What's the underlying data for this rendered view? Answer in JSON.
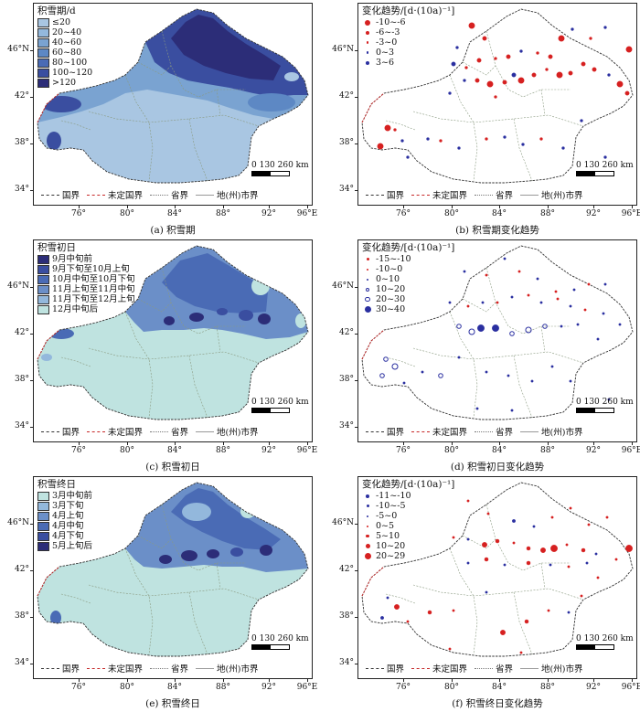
{
  "panels": [
    {
      "id": "a",
      "legend_title": "积雪期/d",
      "legend_type": "fill",
      "legend": [
        {
          "label": "≤20",
          "color": "#a9c6e2"
        },
        {
          "label": "20~40",
          "color": "#93b8dc"
        },
        {
          "label": "40~60",
          "color": "#7aa3d1"
        },
        {
          "label": "60~80",
          "color": "#5d88c4"
        },
        {
          "label": "80~100",
          "color": "#4a6bb5"
        },
        {
          "label": "100~120",
          "color": "#3a4ea0"
        },
        {
          "label": ">120",
          "color": "#2c2d78"
        }
      ],
      "caption": "(a) 积雪期"
    },
    {
      "id": "b",
      "legend_title": "变化趋势/[d·(10a)⁻¹]",
      "legend_type": "dot",
      "legend": [
        {
          "label": "-10~-6",
          "color": "#d62020",
          "size": 6,
          "hollow": false
        },
        {
          "label": "-6~-3",
          "color": "#d62020",
          "size": 4,
          "hollow": false
        },
        {
          "label": "-3~0",
          "color": "#d62020",
          "size": 2.5,
          "hollow": false
        },
        {
          "label": "0~3",
          "color": "#2a2fa0",
          "size": 2.5,
          "hollow": false
        },
        {
          "label": "3~6",
          "color": "#2a2fa0",
          "size": 4,
          "hollow": false
        }
      ],
      "caption": "(b) 积雪期变化趋势"
    },
    {
      "id": "c",
      "legend_title": "积雪初日",
      "legend_type": "fill",
      "legend": [
        {
          "label": "9月中旬前",
          "color": "#2c2d78"
        },
        {
          "label": "9月下旬至10月上旬",
          "color": "#3a4ea0"
        },
        {
          "label": "10月中旬至10月下旬",
          "color": "#4a6bb5"
        },
        {
          "label": "11月上旬至11月中旬",
          "color": "#6b8fc8"
        },
        {
          "label": "11月下旬至12月上旬",
          "color": "#93b8dc"
        },
        {
          "label": "12月中旬后",
          "color": "#bfe3e0"
        }
      ],
      "caption": "(c) 积雪初日"
    },
    {
      "id": "d",
      "legend_title": "变化趋势/[d·(10a)⁻¹]",
      "legend_type": "dot",
      "legend": [
        {
          "label": "-15~-10",
          "color": "#d62020",
          "size": 3,
          "hollow": false
        },
        {
          "label": "-10~0",
          "color": "#d62020",
          "size": 2,
          "hollow": false
        },
        {
          "label": "0~10",
          "color": "#2a2fa0",
          "size": 2,
          "hollow": false
        },
        {
          "label": "10~20",
          "color": "#2a2fa0",
          "size": 4,
          "hollow": true
        },
        {
          "label": "20~30",
          "color": "#2a2fa0",
          "size": 5.5,
          "hollow": true
        },
        {
          "label": "30~40",
          "color": "#2a2fa0",
          "size": 7,
          "hollow": false
        }
      ],
      "caption": "(d) 积雪初日变化趋势"
    },
    {
      "id": "e",
      "legend_title": "积雪终日",
      "legend_type": "fill",
      "legend": [
        {
          "label": "3月中旬前",
          "color": "#bfe3e0"
        },
        {
          "label": "3月下旬",
          "color": "#93b8dc"
        },
        {
          "label": "4月上旬",
          "color": "#6b8fc8"
        },
        {
          "label": "4月中旬",
          "color": "#4a6bb5"
        },
        {
          "label": "4月下旬",
          "color": "#3a4ea0"
        },
        {
          "label": "5月上旬后",
          "color": "#2c2d78"
        }
      ],
      "caption": "(e) 积雪终日"
    },
    {
      "id": "f",
      "legend_title": "变化趋势/[d·(10a)⁻¹]",
      "legend_type": "dot",
      "legend": [
        {
          "label": "-11~-10",
          "color": "#2a2fa0",
          "size": 4,
          "hollow": false
        },
        {
          "label": "-10~-5",
          "color": "#2a2fa0",
          "size": 3,
          "hollow": false
        },
        {
          "label": "-5~0",
          "color": "#2a2fa0",
          "size": 2,
          "hollow": false
        },
        {
          "label": "0~5",
          "color": "#d62020",
          "size": 2,
          "hollow": false
        },
        {
          "label": "5~10",
          "color": "#d62020",
          "size": 3.5,
          "hollow": false
        },
        {
          "label": "10~20",
          "color": "#d62020",
          "size": 5,
          "hollow": false
        },
        {
          "label": "20~29",
          "color": "#d62020",
          "size": 7,
          "hollow": false
        }
      ],
      "caption": "(f) 积雪终日变化趋势"
    }
  ],
  "lat_labels": [
    "46°N",
    "42°",
    "38°",
    "34°"
  ],
  "lon_labels": [
    "76°",
    "80°",
    "84°",
    "88°",
    "92°",
    "96°E"
  ],
  "scale_label": "0 130 260 km",
  "boundary_legend": [
    {
      "label": "国界",
      "color": "#333",
      "style": "dashed"
    },
    {
      "label": "未定国界",
      "color": "#c62828",
      "style": "dashed"
    },
    {
      "label": "省界",
      "color": "#777",
      "style": "dotted"
    },
    {
      "label": "地(州)市界",
      "color": "#999",
      "style": "solid"
    }
  ],
  "colors": {
    "border": "#222",
    "province_line": "#8a9a80"
  }
}
